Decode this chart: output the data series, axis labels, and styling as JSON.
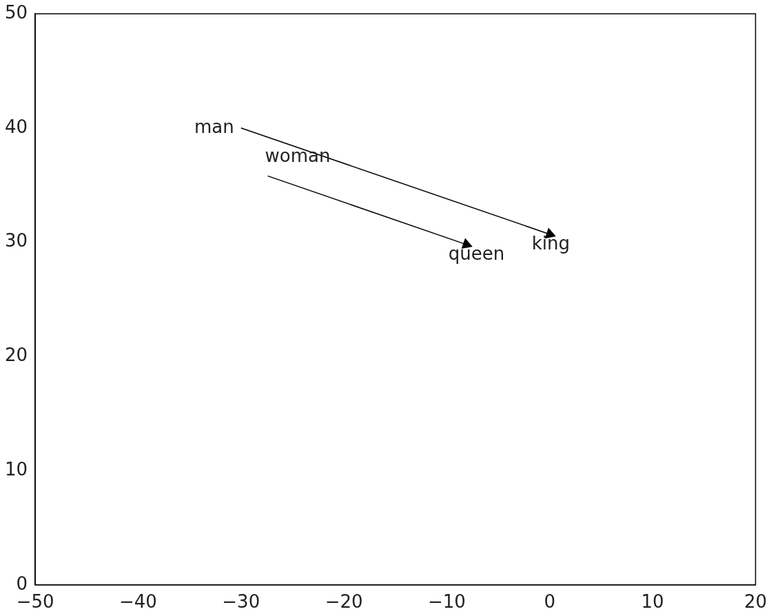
{
  "chart_data": {
    "type": "line",
    "line_style": "solid",
    "grid": false,
    "legend": false,
    "series": [
      {
        "color": "#000000",
        "x": [
          -30,
          0
        ],
        "values": [
          40,
          30.7
        ]
      },
      {
        "color": "#000000",
        "x": [
          -27.4,
          -8.1
        ],
        "values": [
          35.8,
          29.8
        ]
      }
    ],
    "annotations": [
      {
        "text": "man",
        "x": -30,
        "y": 40
      },
      {
        "text": "woman",
        "x": -27.4,
        "y": 35.8
      },
      {
        "text": "queen",
        "x": -8.1,
        "y": 29.8
      },
      {
        "text": "king",
        "x": 0,
        "y": 30.7
      }
    ],
    "xlim": [
      -50,
      20
    ],
    "xticks": [
      {
        "value": -50,
        "label": "−50"
      },
      {
        "value": -40,
        "label": "−40"
      },
      {
        "value": -30,
        "label": "−30"
      },
      {
        "value": -20,
        "label": "−20"
      },
      {
        "value": -10,
        "label": "−10"
      },
      0,
      10,
      20
    ],
    "ylim": [
      0,
      50
    ],
    "yticks": [
      0,
      10,
      20,
      30,
      40,
      50
    ]
  }
}
